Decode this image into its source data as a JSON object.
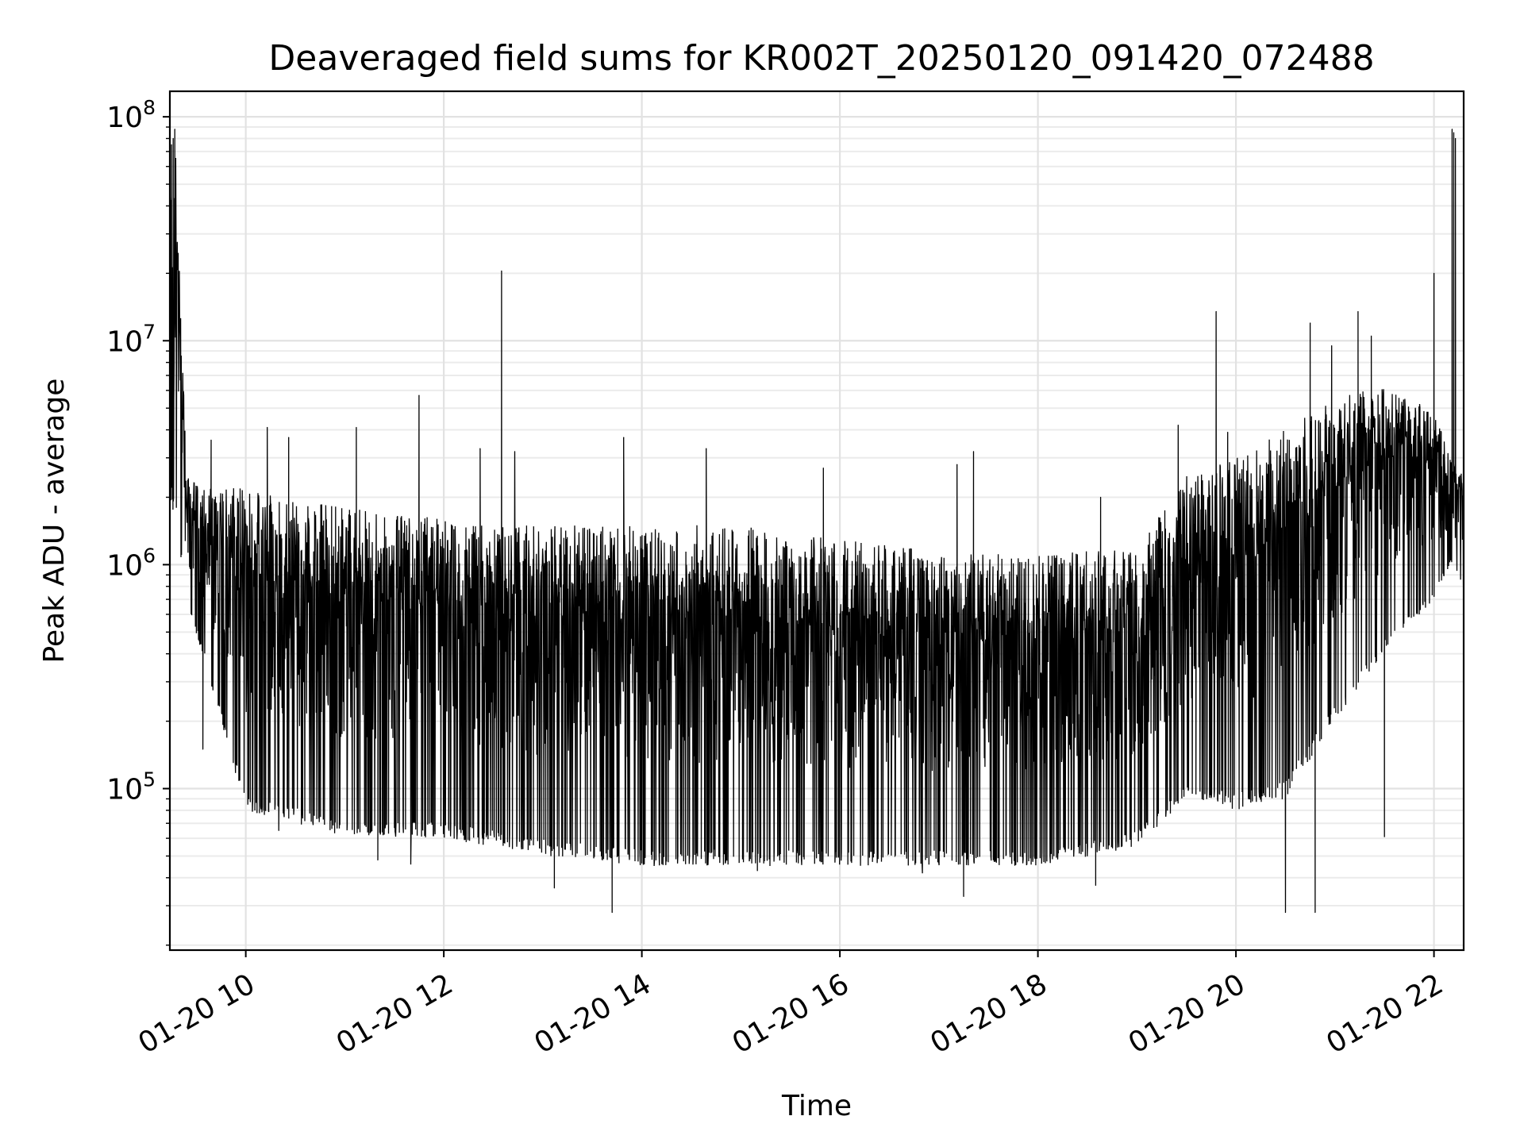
{
  "chart_data": {
    "type": "line",
    "title": "Deaveraged field sums for KR002T_20250120_091420_072488",
    "xlabel": "Time",
    "ylabel": "Peak ADU - average",
    "yscale": "log",
    "grid": true,
    "line_color": "#000000",
    "xlim": [
      "2025-01-20 09:14",
      "2025-01-20 22:18"
    ],
    "ylim": [
      19000,
      130000000
    ],
    "x_ticks": [
      {
        "value": "2025-01-20 10:00",
        "label": "01-20 10"
      },
      {
        "value": "2025-01-20 12:00",
        "label": "01-20 12"
      },
      {
        "value": "2025-01-20 14:00",
        "label": "01-20 14"
      },
      {
        "value": "2025-01-20 16:00",
        "label": "01-20 16"
      },
      {
        "value": "2025-01-20 18:00",
        "label": "01-20 18"
      },
      {
        "value": "2025-01-20 20:00",
        "label": "01-20 20"
      },
      {
        "value": "2025-01-20 22:00",
        "label": "01-20 22"
      }
    ],
    "y_ticks": [
      {
        "value": 100000,
        "base": "10",
        "exp": "5"
      },
      {
        "value": 1000000,
        "base": "10",
        "exp": "6"
      },
      {
        "value": 10000000,
        "base": "10",
        "exp": "7"
      },
      {
        "value": 100000000,
        "base": "10",
        "exp": "8"
      }
    ],
    "series": [
      {
        "envelope": [
          {
            "x": "2025-01-20 09:14",
            "high": 70000000,
            "low": 2000000
          },
          {
            "x": "2025-01-20 09:18",
            "high": 88000000,
            "low": 1500000
          },
          {
            "x": "2025-01-20 09:24",
            "high": 2500000,
            "low": 700000
          },
          {
            "x": "2025-01-20 09:36",
            "high": 2200000,
            "low": 350000
          },
          {
            "x": "2025-01-20 10:00",
            "high": 2200000,
            "low": 80000
          },
          {
            "x": "2025-01-20 11:00",
            "high": 1800000,
            "low": 60000
          },
          {
            "x": "2025-01-20 12:00",
            "high": 1600000,
            "low": 60000
          },
          {
            "x": "2025-01-20 12:30",
            "high": 1500000,
            "low": 55000
          },
          {
            "x": "2025-01-20 13:00",
            "high": 1500000,
            "low": 50000
          },
          {
            "x": "2025-01-20 14:00",
            "high": 1500000,
            "low": 45000
          },
          {
            "x": "2025-01-20 15:00",
            "high": 1500000,
            "low": 45000
          },
          {
            "x": "2025-01-20 16:00",
            "high": 1300000,
            "low": 45000
          },
          {
            "x": "2025-01-20 17:00",
            "high": 1150000,
            "low": 45000
          },
          {
            "x": "2025-01-20 18:00",
            "high": 1100000,
            "low": 45000
          },
          {
            "x": "2025-01-20 19:00",
            "high": 1200000,
            "low": 55000
          },
          {
            "x": "2025-01-20 19:30",
            "high": 2500000,
            "low": 90000
          },
          {
            "x": "2025-01-20 20:00",
            "high": 3000000,
            "low": 80000
          },
          {
            "x": "2025-01-20 20:30",
            "high": 4000000,
            "low": 90000
          },
          {
            "x": "2025-01-20 21:00",
            "high": 5500000,
            "low": 200000
          },
          {
            "x": "2025-01-20 21:30",
            "high": 6500000,
            "low": 400000
          },
          {
            "x": "2025-01-20 22:00",
            "high": 5000000,
            "low": 700000
          },
          {
            "x": "2025-01-20 22:10",
            "high": 3000000,
            "low": 1000000
          },
          {
            "x": "2025-01-20 22:18",
            "high": 2600000,
            "low": 800000
          }
        ],
        "spikes": [
          {
            "x": "2025-01-20 09:15",
            "y": 75000000
          },
          {
            "x": "2025-01-20 09:16",
            "y": 80000000
          },
          {
            "x": "2025-01-20 09:17",
            "y": 88000000
          },
          {
            "x": "2025-01-20 09:39",
            "y": 3600000
          },
          {
            "x": "2025-01-20 10:13",
            "y": 4100000
          },
          {
            "x": "2025-01-20 10:26",
            "y": 3700000
          },
          {
            "x": "2025-01-20 11:07",
            "y": 4100000
          },
          {
            "x": "2025-01-20 11:45",
            "y": 5700000
          },
          {
            "x": "2025-01-20 12:22",
            "y": 3300000
          },
          {
            "x": "2025-01-20 12:35",
            "y": 20500000
          },
          {
            "x": "2025-01-20 12:43",
            "y": 3200000
          },
          {
            "x": "2025-01-20 13:49",
            "y": 3700000
          },
          {
            "x": "2025-01-20 14:39",
            "y": 3300000
          },
          {
            "x": "2025-01-20 15:50",
            "y": 2700000
          },
          {
            "x": "2025-01-20 17:11",
            "y": 2800000
          },
          {
            "x": "2025-01-20 17:21",
            "y": 3200000
          },
          {
            "x": "2025-01-20 18:38",
            "y": 2000000
          },
          {
            "x": "2025-01-20 19:25",
            "y": 4200000
          },
          {
            "x": "2025-01-20 19:48",
            "y": 13500000
          },
          {
            "x": "2025-01-20 19:55",
            "y": 3900000
          },
          {
            "x": "2025-01-20 20:45",
            "y": 12000000
          },
          {
            "x": "2025-01-20 20:58",
            "y": 9500000
          },
          {
            "x": "2025-01-20 21:14",
            "y": 13500000
          },
          {
            "x": "2025-01-20 21:22",
            "y": 10500000
          },
          {
            "x": "2025-01-20 22:00",
            "y": 20000000
          },
          {
            "x": "2025-01-20 22:11",
            "y": 88000000
          },
          {
            "x": "2025-01-20 22:12",
            "y": 85000000
          },
          {
            "x": "2025-01-20 22:13",
            "y": 80000000
          }
        ],
        "dips": [
          {
            "x": "2025-01-20 09:34",
            "y": 150000
          },
          {
            "x": "2025-01-20 10:20",
            "y": 65000
          },
          {
            "x": "2025-01-20 11:20",
            "y": 48000
          },
          {
            "x": "2025-01-20 11:40",
            "y": 46000
          },
          {
            "x": "2025-01-20 13:07",
            "y": 36000
          },
          {
            "x": "2025-01-20 13:42",
            "y": 28000
          },
          {
            "x": "2025-01-20 15:10",
            "y": 43000
          },
          {
            "x": "2025-01-20 16:50",
            "y": 42000
          },
          {
            "x": "2025-01-20 17:15",
            "y": 33000
          },
          {
            "x": "2025-01-20 18:35",
            "y": 37000
          },
          {
            "x": "2025-01-20 20:30",
            "y": 28000
          },
          {
            "x": "2025-01-20 20:48",
            "y": 28000
          },
          {
            "x": "2025-01-20 21:30",
            "y": 61000
          }
        ]
      }
    ]
  }
}
